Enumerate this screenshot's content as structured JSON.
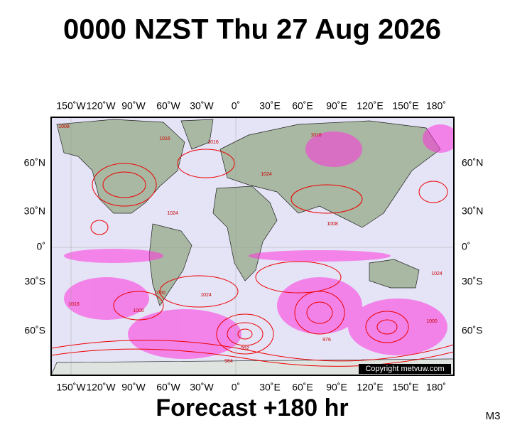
{
  "header": {
    "title": "0000 NZST Thu 27 Aug 2026"
  },
  "map": {
    "lon_labels": [
      "150˚W",
      "120˚W",
      "90˚W",
      "60˚W",
      "30˚W",
      "0˚",
      "30˚E",
      "60˚E",
      "90˚E",
      "120˚E",
      "150˚E",
      "180˚"
    ],
    "lat_labels": [
      "60˚N",
      "30˚N",
      "0˚",
      "30˚S",
      "60˚S"
    ],
    "contour_labels": [
      "1008",
      "1016",
      "1024",
      "1016",
      "1024",
      "1008",
      "1016",
      "1000",
      "1024",
      "1016",
      "1000",
      "992",
      "984",
      "976",
      "1024",
      "1000"
    ],
    "copyright": "Copyright metvuw.com"
  },
  "footer": {
    "forecast": "Forecast +180 hr",
    "model": "M3"
  }
}
